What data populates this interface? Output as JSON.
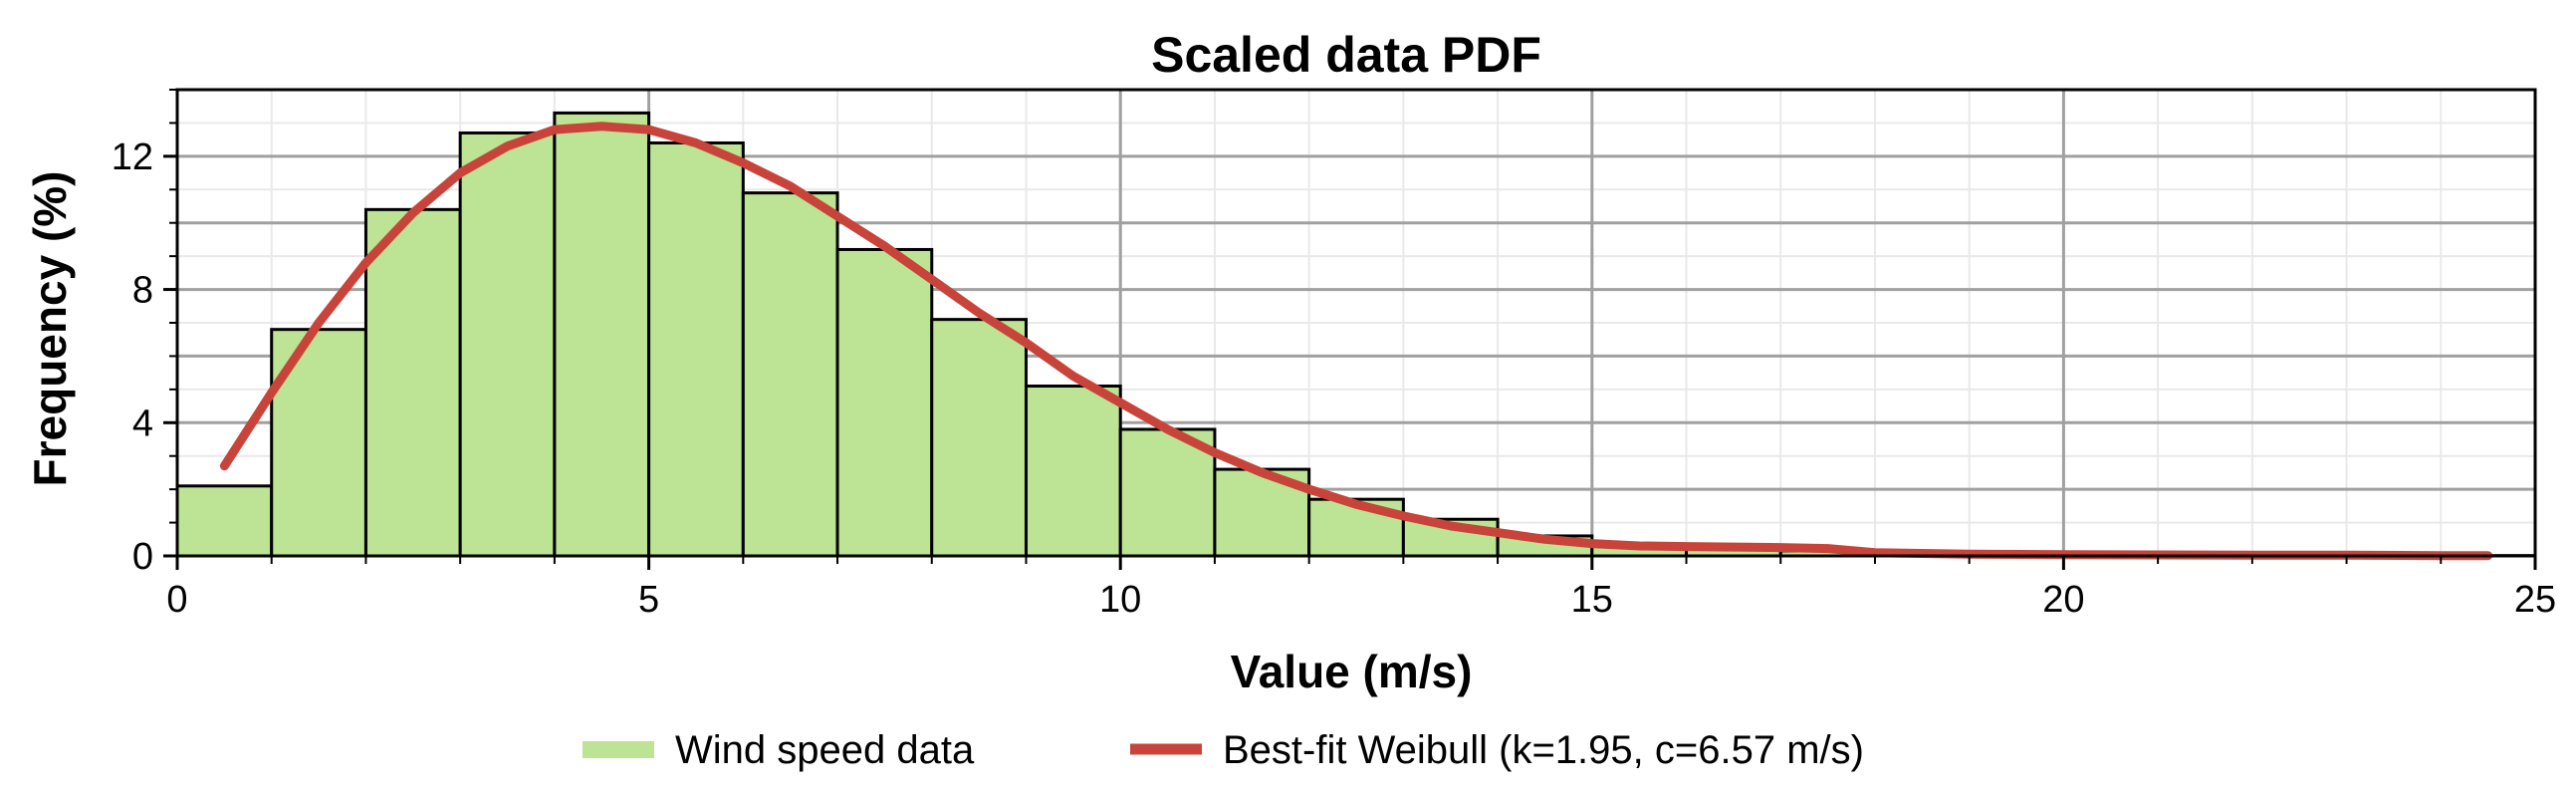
{
  "chart_data": {
    "type": "bar",
    "title": "Scaled data PDF",
    "xlabel": "Value (m/s)",
    "ylabel": "Frequency (%)",
    "xlim": [
      0,
      25
    ],
    "ylim": [
      0,
      14
    ],
    "x_ticks": [
      0,
      5,
      10,
      15,
      20,
      25
    ],
    "y_ticks": [
      0,
      4,
      8,
      12
    ],
    "grid": true,
    "legend_position": "bottom",
    "series": [
      {
        "name": "Wind speed data",
        "type": "histogram",
        "color": "#bde394",
        "bin_edges": [
          0,
          1,
          2,
          3,
          4,
          5,
          6,
          7,
          8,
          9,
          10,
          11,
          12,
          13,
          14,
          15,
          16,
          17,
          18,
          19,
          20,
          21,
          22,
          23,
          24,
          25
        ],
        "values": [
          2.1,
          6.8,
          10.4,
          12.7,
          13.3,
          12.4,
          10.9,
          9.2,
          7.1,
          5.1,
          3.8,
          2.6,
          1.7,
          1.1,
          0.6,
          0.35,
          0.2,
          0.15,
          0.08,
          0.05,
          0.03,
          0.02,
          0.02,
          0.01,
          0.01
        ]
      },
      {
        "name": "Best-fit Weibull (k=1.95, c=6.57 m/s)",
        "type": "line",
        "color": "#c8443a",
        "x": [
          0.5,
          1,
          1.5,
          2,
          2.5,
          3,
          3.5,
          4,
          4.5,
          5,
          5.5,
          6,
          6.5,
          7,
          7.5,
          8,
          8.5,
          9,
          9.5,
          10,
          10.5,
          11,
          11.5,
          12,
          12.5,
          13,
          13.5,
          14,
          14.5,
          15,
          15.5,
          16,
          17,
          17.5,
          18,
          19,
          20,
          21,
          22,
          23,
          24,
          24.5
        ],
        "y": [
          2.7,
          4.9,
          7.0,
          8.8,
          10.3,
          11.5,
          12.3,
          12.8,
          12.9,
          12.8,
          12.4,
          11.8,
          11.1,
          10.2,
          9.3,
          8.3,
          7.3,
          6.4,
          5.4,
          4.6,
          3.8,
          3.1,
          2.5,
          2.0,
          1.55,
          1.2,
          0.9,
          0.7,
          0.5,
          0.37,
          0.3,
          0.28,
          0.25,
          0.22,
          0.1,
          0.05,
          0.04,
          0.03,
          0.02,
          0.02,
          0.01,
          0.01
        ]
      }
    ]
  }
}
